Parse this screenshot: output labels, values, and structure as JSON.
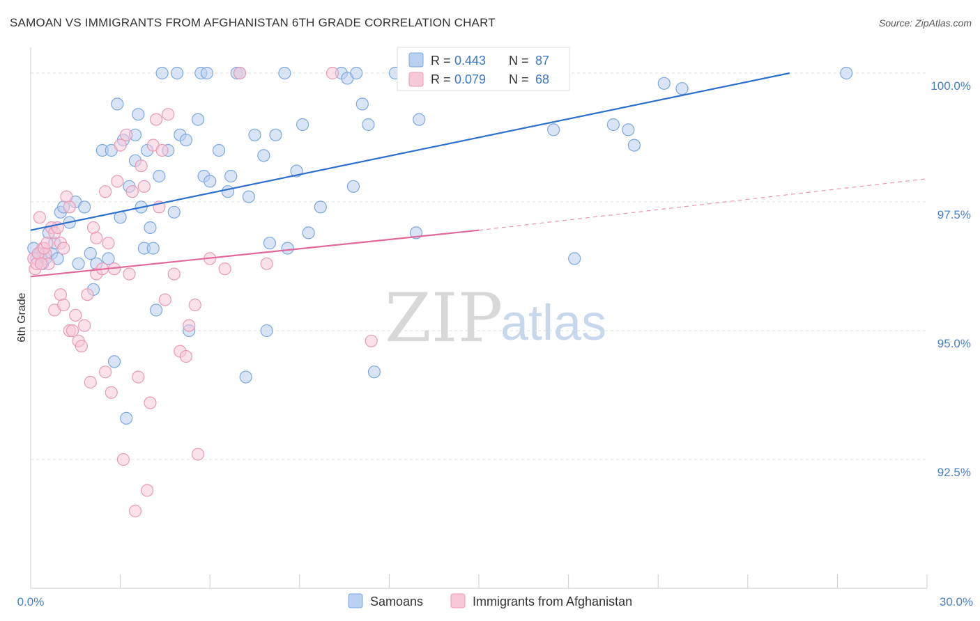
{
  "chart_data": {
    "type": "scatter",
    "title": "SAMOAN VS IMMIGRANTS FROM AFGHANISTAN 6TH GRADE CORRELATION CHART",
    "source": "Source: ZipAtlas.com",
    "watermark": {
      "zip": "ZIP",
      "atlas": "atlas"
    },
    "xlabel": "",
    "ylabel": "6th Grade",
    "xlim": [
      0,
      30
    ],
    "ylim": [
      90.0,
      100.5
    ],
    "x_tick_labels": {
      "left": "0.0%",
      "right": "30.0%"
    },
    "x_minor_ticks": [
      3,
      6,
      9,
      12,
      15,
      18,
      21,
      24,
      27,
      30
    ],
    "y_ticks": [
      {
        "value": 100.0,
        "label": "100.0%"
      },
      {
        "value": 97.5,
        "label": "97.5%"
      },
      {
        "value": 95.0,
        "label": "95.0%"
      },
      {
        "value": 92.5,
        "label": "92.5%"
      }
    ],
    "legend": [
      {
        "r_label": "R =",
        "r_value": "0.443",
        "n_label": "N =",
        "n_value": "87"
      },
      {
        "r_label": "R =",
        "r_value": "0.079",
        "n_label": "N =",
        "n_value": "68"
      }
    ],
    "series": [
      {
        "name": "Samoans",
        "color": "#7ba7e0",
        "fill": "#b9d0f0",
        "line_color": "#2d6fcc",
        "trend": {
          "x0": 0,
          "y0": 96.95,
          "x1": 25.4,
          "y1": 100.0,
          "dashed_to": null
        },
        "points": [
          [
            0.1,
            96.6
          ],
          [
            0.2,
            96.4
          ],
          [
            0.3,
            96.5
          ],
          [
            0.4,
            96.3
          ],
          [
            0.5,
            96.4
          ],
          [
            0.6,
            96.9
          ],
          [
            0.7,
            96.5
          ],
          [
            0.8,
            96.7
          ],
          [
            0.9,
            96.4
          ],
          [
            1.0,
            97.3
          ],
          [
            1.1,
            97.4
          ],
          [
            1.3,
            97.1
          ],
          [
            1.5,
            97.5
          ],
          [
            1.6,
            96.3
          ],
          [
            1.8,
            97.4
          ],
          [
            2.0,
            96.5
          ],
          [
            2.1,
            95.8
          ],
          [
            2.2,
            96.3
          ],
          [
            2.4,
            98.5
          ],
          [
            2.6,
            96.4
          ],
          [
            2.7,
            98.5
          ],
          [
            2.8,
            94.4
          ],
          [
            2.9,
            99.4
          ],
          [
            3.0,
            97.2
          ],
          [
            3.1,
            98.7
          ],
          [
            3.2,
            93.3
          ],
          [
            3.3,
            97.8
          ],
          [
            3.5,
            98.3
          ],
          [
            3.5,
            98.8
          ],
          [
            3.6,
            99.2
          ],
          [
            3.7,
            97.4
          ],
          [
            3.8,
            96.6
          ],
          [
            3.9,
            98.5
          ],
          [
            4.0,
            97.0
          ],
          [
            4.1,
            96.6
          ],
          [
            4.2,
            95.4
          ],
          [
            4.3,
            98.0
          ],
          [
            4.4,
            100.0
          ],
          [
            4.6,
            98.5
          ],
          [
            4.8,
            97.3
          ],
          [
            4.9,
            100.0
          ],
          [
            5.0,
            98.8
          ],
          [
            5.2,
            98.7
          ],
          [
            5.3,
            95.0
          ],
          [
            5.6,
            99.1
          ],
          [
            5.7,
            100.0
          ],
          [
            5.8,
            98.0
          ],
          [
            5.9,
            100.0
          ],
          [
            6.0,
            97.9
          ],
          [
            6.3,
            98.5
          ],
          [
            6.6,
            97.7
          ],
          [
            6.7,
            98.0
          ],
          [
            6.9,
            100.0
          ],
          [
            7.0,
            100.0
          ],
          [
            7.2,
            94.1
          ],
          [
            7.3,
            97.6
          ],
          [
            7.5,
            98.8
          ],
          [
            7.8,
            98.4
          ],
          [
            7.9,
            95.0
          ],
          [
            8.0,
            96.7
          ],
          [
            8.2,
            98.8
          ],
          [
            8.5,
            100.0
          ],
          [
            8.6,
            96.6
          ],
          [
            8.9,
            98.1
          ],
          [
            9.1,
            99.0
          ],
          [
            9.3,
            96.9
          ],
          [
            9.7,
            97.4
          ],
          [
            10.4,
            100.0
          ],
          [
            10.6,
            99.9
          ],
          [
            10.8,
            97.8
          ],
          [
            10.9,
            100.0
          ],
          [
            11.1,
            99.4
          ],
          [
            11.3,
            99.0
          ],
          [
            11.5,
            94.2
          ],
          [
            12.2,
            100.0
          ],
          [
            12.9,
            96.9
          ],
          [
            13.0,
            99.1
          ],
          [
            13.9,
            100.0
          ],
          [
            14.3,
            100.0
          ],
          [
            17.5,
            98.9
          ],
          [
            18.2,
            96.4
          ],
          [
            19.5,
            99.0
          ],
          [
            20.0,
            98.9
          ],
          [
            20.2,
            98.6
          ],
          [
            21.2,
            99.8
          ],
          [
            21.8,
            99.7
          ],
          [
            27.3,
            100.0
          ]
        ]
      },
      {
        "name": "Immigrants from Afghanistan",
        "color": "#e89ab4",
        "fill": "#f7c9d8",
        "line_color": "#e0689a",
        "trend": {
          "x0": 0,
          "y0": 96.05,
          "x1": 15.0,
          "y1": 96.95,
          "dashed_to": {
            "x": 30.0,
            "y": 97.95
          }
        },
        "points": [
          [
            0.1,
            96.4
          ],
          [
            0.15,
            96.2
          ],
          [
            0.2,
            96.3
          ],
          [
            0.3,
            97.2
          ],
          [
            0.4,
            96.6
          ],
          [
            0.5,
            96.5
          ],
          [
            0.6,
            96.3
          ],
          [
            0.7,
            97.0
          ],
          [
            0.8,
            96.9
          ],
          [
            0.9,
            97.0
          ],
          [
            1.0,
            96.7
          ],
          [
            1.1,
            96.6
          ],
          [
            0.8,
            95.4
          ],
          [
            1.0,
            95.7
          ],
          [
            1.1,
            95.5
          ],
          [
            1.2,
            97.6
          ],
          [
            1.3,
            97.4
          ],
          [
            1.3,
            95.0
          ],
          [
            1.4,
            95.0
          ],
          [
            1.5,
            95.3
          ],
          [
            1.6,
            94.8
          ],
          [
            1.7,
            94.7
          ],
          [
            1.8,
            95.1
          ],
          [
            1.9,
            95.7
          ],
          [
            2.0,
            94.0
          ],
          [
            2.1,
            97.0
          ],
          [
            2.2,
            96.8
          ],
          [
            2.2,
            96.1
          ],
          [
            2.4,
            96.2
          ],
          [
            2.5,
            97.7
          ],
          [
            2.5,
            94.2
          ],
          [
            2.6,
            96.7
          ],
          [
            2.7,
            93.8
          ],
          [
            2.8,
            96.2
          ],
          [
            2.9,
            97.9
          ],
          [
            3.0,
            98.6
          ],
          [
            3.1,
            92.5
          ],
          [
            3.2,
            98.8
          ],
          [
            3.3,
            96.1
          ],
          [
            3.4,
            97.7
          ],
          [
            3.5,
            91.5
          ],
          [
            3.6,
            94.1
          ],
          [
            3.7,
            98.2
          ],
          [
            3.8,
            97.8
          ],
          [
            3.9,
            91.9
          ],
          [
            4.0,
            93.6
          ],
          [
            4.1,
            98.6
          ],
          [
            4.2,
            99.1
          ],
          [
            4.3,
            97.4
          ],
          [
            4.4,
            98.5
          ],
          [
            4.5,
            95.6
          ],
          [
            4.6,
            99.2
          ],
          [
            4.8,
            96.1
          ],
          [
            5.0,
            94.6
          ],
          [
            5.2,
            94.5
          ],
          [
            5.3,
            95.1
          ],
          [
            5.5,
            95.5
          ],
          [
            5.6,
            92.6
          ],
          [
            6.0,
            96.4
          ],
          [
            6.5,
            96.2
          ],
          [
            7.0,
            100.0
          ],
          [
            7.9,
            96.3
          ],
          [
            10.1,
            100.0
          ],
          [
            11.4,
            94.8
          ],
          [
            0.25,
            96.5
          ],
          [
            0.35,
            96.3
          ],
          [
            0.45,
            96.6
          ],
          [
            0.55,
            96.7
          ]
        ]
      }
    ]
  }
}
